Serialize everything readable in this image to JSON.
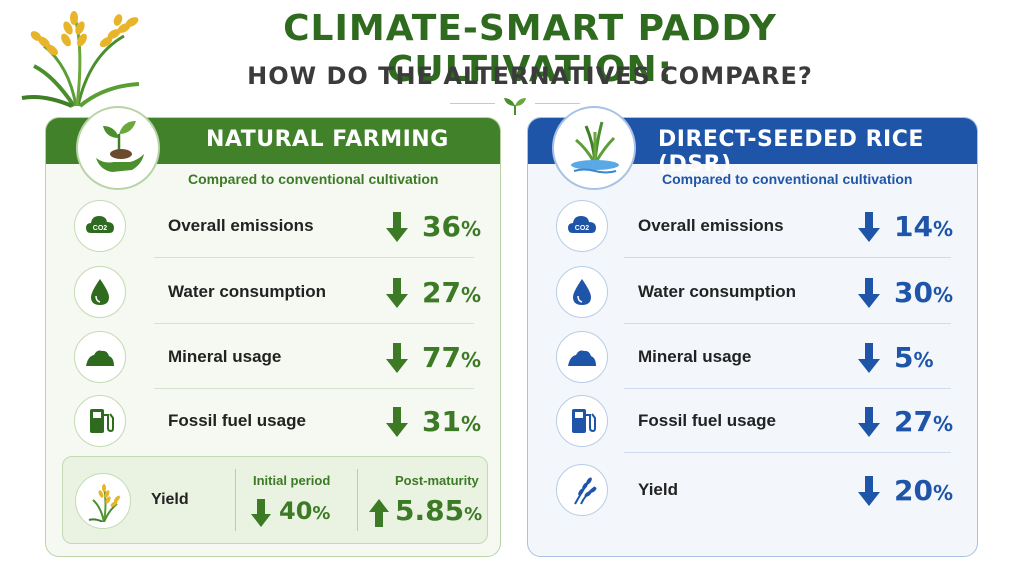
{
  "title": {
    "main": "CLIMATE-SMART PADDY CULTIVATION:",
    "sub": "HOW DO THE ALTERNATIVES COMPARE?"
  },
  "colors": {
    "green": "#40812a",
    "blue": "#1f55a8"
  },
  "natural_farming": {
    "title": "NATURAL FARMING",
    "subtitle": "Compared to conventional cultivation",
    "icon": "hand-sprout-icon",
    "metrics": [
      {
        "label": "Overall emissions",
        "value": "36",
        "unit": "%",
        "direction": "down",
        "icon": "co2-cloud-icon",
        "icon_text": "CO2"
      },
      {
        "label": "Water consumption",
        "value": "27",
        "unit": "%",
        "direction": "down",
        "icon": "water-drop-icon"
      },
      {
        "label": "Mineral usage",
        "value": "77",
        "unit": "%",
        "direction": "down",
        "icon": "mineral-pile-icon"
      },
      {
        "label": "Fossil fuel usage",
        "value": "31",
        "unit": "%",
        "direction": "down",
        "icon": "fuel-pump-icon"
      }
    ],
    "yield": {
      "label": "Yield",
      "icon": "rice-plant-icon",
      "initial": {
        "label": "Initial period",
        "value": "40",
        "unit": "%",
        "direction": "down"
      },
      "post": {
        "label": "Post-maturity",
        "value": "5.85",
        "unit": "%",
        "direction": "up"
      }
    }
  },
  "dsr": {
    "title": "DIRECT-SEEDED RICE (DSR)",
    "subtitle": "Compared to conventional cultivation",
    "icon": "rice-seedling-water-icon",
    "metrics": [
      {
        "label": "Overall emissions",
        "value": "14",
        "unit": "%",
        "direction": "down",
        "icon": "co2-cloud-icon",
        "icon_text": "CO2"
      },
      {
        "label": "Water consumption",
        "value": "30",
        "unit": "%",
        "direction": "down",
        "icon": "water-drop-icon"
      },
      {
        "label": "Mineral usage",
        "value": "5",
        "unit": "%",
        "direction": "down",
        "icon": "mineral-pile-icon"
      },
      {
        "label": "Fossil fuel usage",
        "value": "27",
        "unit": "%",
        "direction": "down",
        "icon": "fuel-pump-icon"
      },
      {
        "label": "Yield",
        "value": "20",
        "unit": "%",
        "direction": "down",
        "icon": "wheat-icon"
      }
    ]
  }
}
